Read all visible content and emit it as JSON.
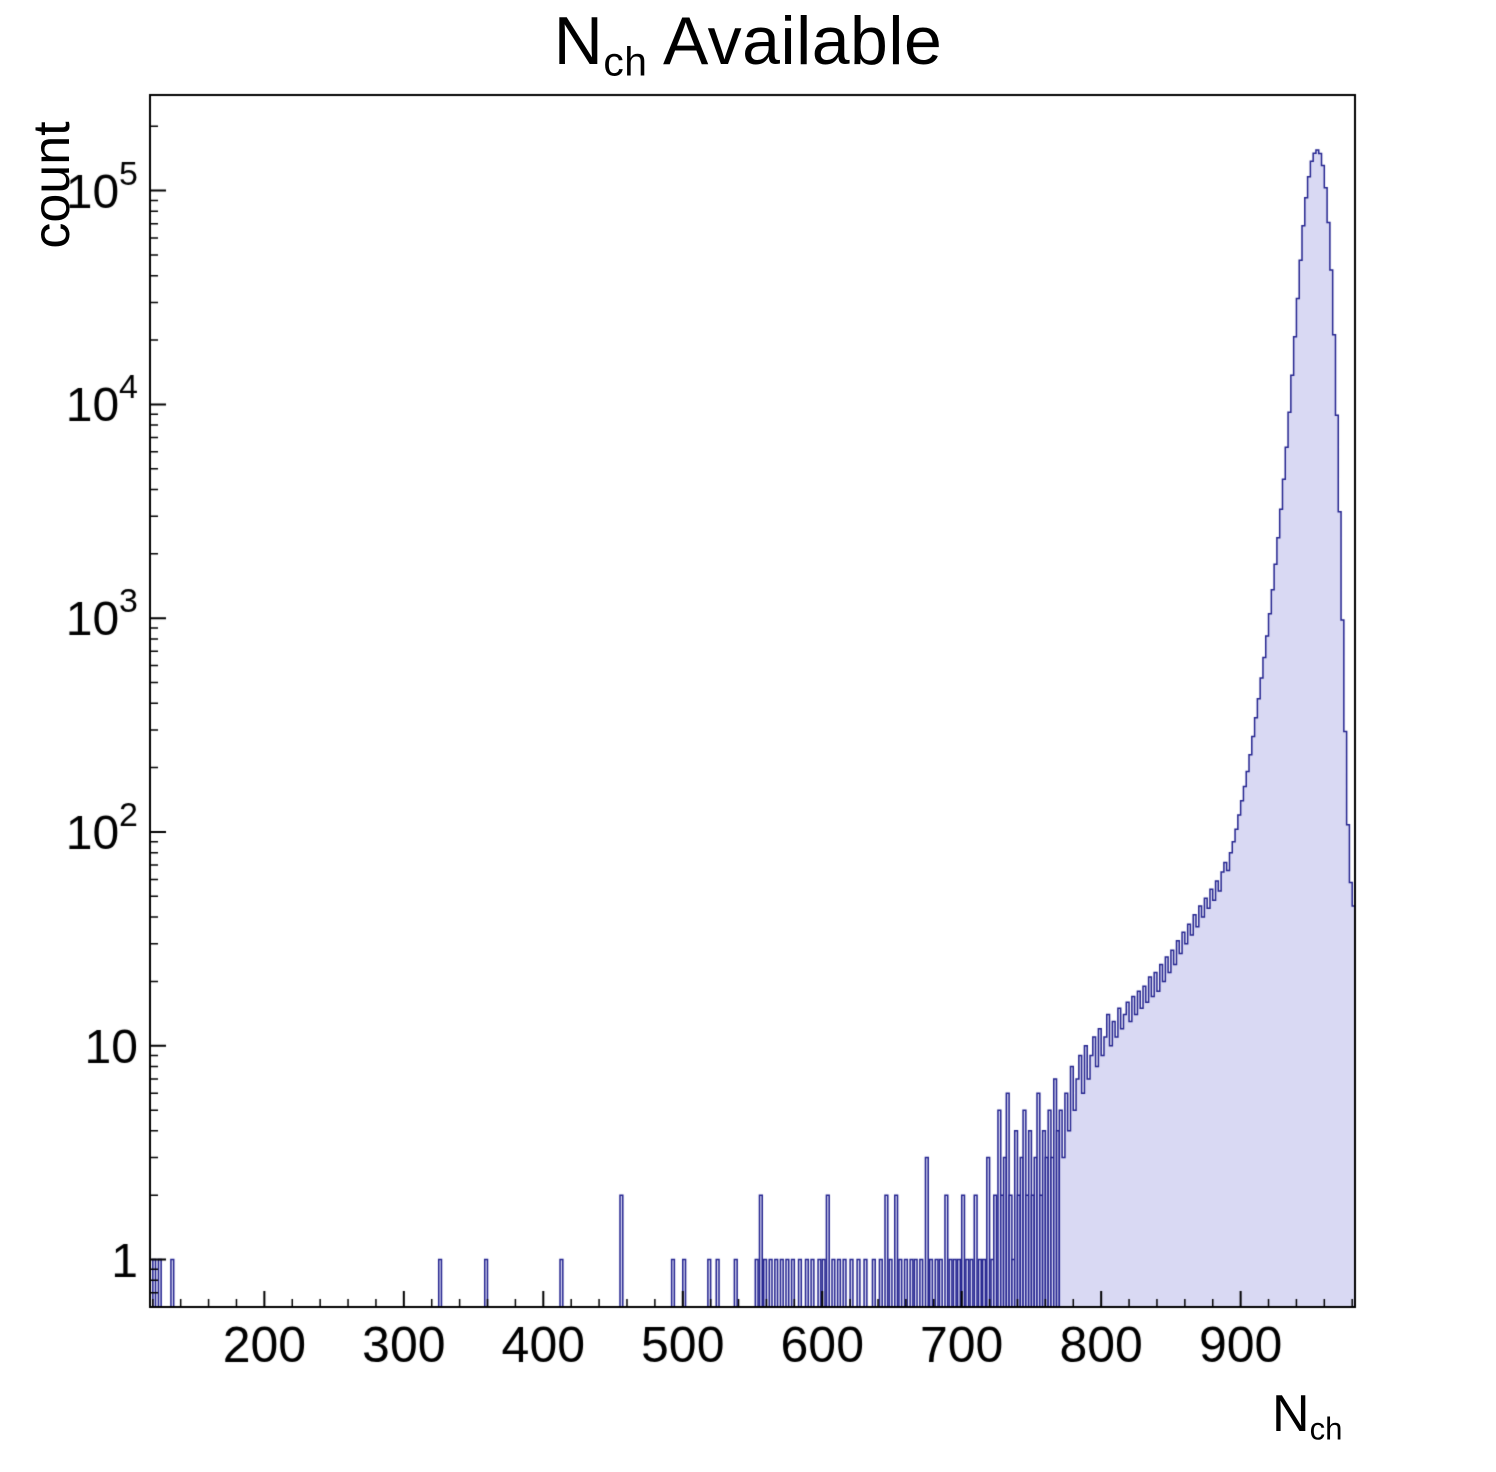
{
  "chart_data": {
    "type": "bar",
    "subtype": "histogram-log-y",
    "title": {
      "main": "N",
      "sub": "ch",
      "rest": " Available"
    },
    "xlabel_main": "N",
    "xlabel_sub": "ch",
    "ylabel": "count",
    "x_range": [
      118,
      982
    ],
    "y_range": [
      0.6,
      280000
    ],
    "y_scale": "log",
    "grid": false,
    "legend": "none",
    "x_ticks_major": [
      200,
      300,
      400,
      500,
      600,
      700,
      800,
      900
    ],
    "x_tick_minor_step": 20,
    "y_ticks_major": [
      1,
      10,
      100,
      1000,
      10000,
      100000
    ],
    "bin_width": 2,
    "fill_color": "#d9d9f3",
    "line_color": "#23238f",
    "frame_color": "#000000",
    "sparse_bins": [
      [
        120,
        1
      ],
      [
        124,
        1
      ],
      [
        133,
        1
      ],
      [
        325,
        1
      ],
      [
        358,
        1
      ],
      [
        412,
        1
      ],
      [
        455,
        2
      ],
      [
        492,
        1
      ],
      [
        500,
        1
      ],
      [
        518,
        1
      ],
      [
        524,
        1
      ],
      [
        537,
        1
      ],
      [
        552,
        1
      ],
      [
        555,
        2
      ],
      [
        558,
        1
      ],
      [
        562,
        1
      ],
      [
        566,
        1
      ],
      [
        570,
        1
      ],
      [
        574,
        1
      ],
      [
        578,
        1
      ],
      [
        583,
        1
      ],
      [
        588,
        1
      ],
      [
        592,
        1
      ],
      [
        597,
        1
      ],
      [
        600,
        1
      ],
      [
        603,
        2
      ],
      [
        607,
        1
      ],
      [
        611,
        1
      ],
      [
        615,
        1
      ],
      [
        620,
        1
      ],
      [
        625,
        1
      ],
      [
        630,
        1
      ],
      [
        636,
        1
      ],
      [
        641,
        1
      ],
      [
        645,
        2
      ],
      [
        648,
        1
      ],
      [
        652,
        2
      ],
      [
        655,
        1
      ],
      [
        659,
        1
      ],
      [
        663,
        1
      ],
      [
        666,
        1
      ],
      [
        670,
        1
      ],
      [
        674,
        3
      ],
      [
        677,
        1
      ],
      [
        681,
        1
      ],
      [
        684,
        1
      ],
      [
        688,
        2
      ],
      [
        691,
        1
      ],
      [
        694,
        1
      ],
      [
        697,
        1
      ],
      [
        700,
        2
      ],
      [
        703,
        1
      ],
      [
        706,
        1
      ],
      [
        709,
        2
      ],
      [
        712,
        1
      ],
      [
        715,
        1
      ],
      [
        718,
        3
      ],
      [
        721,
        1
      ],
      [
        723,
        2
      ],
      [
        726,
        5
      ],
      [
        728,
        2
      ],
      [
        730,
        3
      ],
      [
        732,
        6
      ],
      [
        734,
        2
      ],
      [
        736,
        1
      ],
      [
        738,
        4
      ],
      [
        740,
        2
      ],
      [
        742,
        3
      ],
      [
        744,
        5
      ],
      [
        746,
        2
      ],
      [
        748,
        4
      ],
      [
        750,
        2
      ],
      [
        752,
        3
      ],
      [
        754,
        6
      ],
      [
        756,
        2
      ],
      [
        758,
        4
      ],
      [
        760,
        3
      ],
      [
        762,
        5
      ],
      [
        764,
        3
      ],
      [
        766,
        7
      ],
      [
        768,
        4
      ]
    ],
    "dense_start": 770,
    "dense_counts": [
      5,
      3,
      6,
      4,
      8,
      5,
      7,
      9,
      6,
      10,
      7,
      9,
      11,
      8,
      12,
      9,
      11,
      14,
      10,
      13,
      11,
      15,
      12,
      14,
      16,
      13,
      17,
      14,
      18,
      15,
      19,
      16,
      21,
      17,
      22,
      18,
      24,
      20,
      26,
      22,
      28,
      24,
      31,
      27,
      34,
      30,
      37,
      33,
      41,
      36,
      45,
      40,
      49,
      44,
      54,
      48,
      59,
      53,
      65,
      72,
      66,
      80,
      90,
      103,
      120,
      140,
      163,
      192,
      230,
      280,
      342,
      420,
      525,
      655,
      825,
      1050,
      1360,
      1790,
      2380,
      3230,
      4460,
      6300,
      9200,
      13700,
      20700,
      31300,
      47200,
      68500,
      92500,
      116000,
      137000,
      149500,
      155000,
      149000,
      131000,
      103000,
      71000,
      42500,
      21200,
      8900,
      3150,
      980,
      295,
      108,
      58,
      45
    ]
  }
}
